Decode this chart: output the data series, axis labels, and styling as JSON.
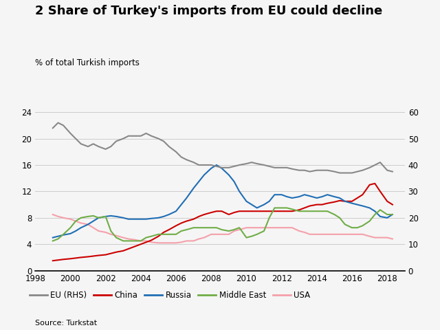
{
  "title": "2 Share of Turkey's imports from EU could decline",
  "ylabel_left": "% of total Turkish imports",
  "source": "Source: Turkstat",
  "xlim": [
    1998,
    2019
  ],
  "ylim_left": [
    0,
    30
  ],
  "ylim_right": [
    0,
    75
  ],
  "yticks_left": [
    0,
    4,
    8,
    12,
    16,
    20,
    24
  ],
  "yticks_right": [
    0,
    10,
    20,
    30,
    40,
    50,
    60
  ],
  "xticks": [
    1998,
    2000,
    2002,
    2004,
    2006,
    2008,
    2010,
    2012,
    2014,
    2016,
    2018
  ],
  "EU_RHS": {
    "label": "EU (RHS)",
    "color": "#888888",
    "x": [
      1999.0,
      1999.3,
      1999.6,
      2000.0,
      2000.3,
      2000.6,
      2001.0,
      2001.3,
      2001.6,
      2002.0,
      2002.3,
      2002.6,
      2003.0,
      2003.3,
      2003.6,
      2004.0,
      2004.3,
      2004.6,
      2005.0,
      2005.3,
      2005.6,
      2006.0,
      2006.3,
      2006.6,
      2007.0,
      2007.3,
      2007.6,
      2008.0,
      2008.3,
      2008.6,
      2009.0,
      2009.3,
      2009.6,
      2010.0,
      2010.3,
      2010.6,
      2011.0,
      2011.3,
      2011.6,
      2012.0,
      2012.3,
      2012.6,
      2013.0,
      2013.3,
      2013.6,
      2014.0,
      2014.3,
      2014.6,
      2015.0,
      2015.3,
      2015.6,
      2016.0,
      2016.3,
      2016.6,
      2017.0,
      2017.3,
      2017.6,
      2018.0,
      2018.3
    ],
    "y": [
      54,
      56,
      55,
      52,
      50,
      48,
      47,
      48,
      47,
      46,
      47,
      49,
      50,
      51,
      51,
      51,
      52,
      51,
      50,
      49,
      47,
      45,
      43,
      42,
      41,
      40,
      40,
      40,
      39.5,
      39,
      39,
      39.5,
      40,
      40.5,
      41,
      40.5,
      40,
      39.5,
      39,
      39,
      39,
      38.5,
      38,
      38,
      37.5,
      38,
      38,
      38,
      37.5,
      37,
      37,
      37,
      37.5,
      38,
      39,
      40,
      41,
      38,
      37.5
    ]
  },
  "China": {
    "label": "China",
    "color": "#cc0000",
    "x": [
      1999.0,
      1999.3,
      1999.6,
      2000.0,
      2000.3,
      2000.6,
      2001.0,
      2001.3,
      2001.6,
      2002.0,
      2002.3,
      2002.6,
      2003.0,
      2003.3,
      2003.6,
      2004.0,
      2004.3,
      2004.6,
      2005.0,
      2005.3,
      2005.6,
      2006.0,
      2006.3,
      2006.6,
      2007.0,
      2007.3,
      2007.6,
      2008.0,
      2008.3,
      2008.6,
      2009.0,
      2009.3,
      2009.6,
      2010.0,
      2010.3,
      2010.6,
      2011.0,
      2011.3,
      2011.6,
      2012.0,
      2012.3,
      2012.6,
      2013.0,
      2013.3,
      2013.6,
      2014.0,
      2014.3,
      2014.6,
      2015.0,
      2015.3,
      2015.6,
      2016.0,
      2016.3,
      2016.6,
      2017.0,
      2017.3,
      2017.6,
      2018.0,
      2018.3
    ],
    "y": [
      1.5,
      1.6,
      1.7,
      1.8,
      1.9,
      2.0,
      2.1,
      2.2,
      2.3,
      2.4,
      2.6,
      2.8,
      3.0,
      3.3,
      3.6,
      4.0,
      4.3,
      4.6,
      5.2,
      5.8,
      6.2,
      6.8,
      7.2,
      7.5,
      7.8,
      8.2,
      8.5,
      8.8,
      9.0,
      9.0,
      8.5,
      8.8,
      9.0,
      9.0,
      9.0,
      9.0,
      9.0,
      9.0,
      9.0,
      9.0,
      9.0,
      9.0,
      9.2,
      9.5,
      9.8,
      10.0,
      10.0,
      10.2,
      10.4,
      10.6,
      10.5,
      10.5,
      11.0,
      11.5,
      13.0,
      13.2,
      12.0,
      10.5,
      10.0
    ]
  },
  "Russia": {
    "label": "Russia",
    "color": "#1f6eb5",
    "x": [
      1999.0,
      1999.3,
      1999.6,
      2000.0,
      2000.3,
      2000.6,
      2001.0,
      2001.3,
      2001.6,
      2002.0,
      2002.3,
      2002.6,
      2003.0,
      2003.3,
      2003.6,
      2004.0,
      2004.3,
      2004.6,
      2005.0,
      2005.3,
      2005.6,
      2006.0,
      2006.3,
      2006.6,
      2007.0,
      2007.3,
      2007.6,
      2008.0,
      2008.3,
      2008.6,
      2009.0,
      2009.3,
      2009.6,
      2010.0,
      2010.3,
      2010.6,
      2011.0,
      2011.3,
      2011.6,
      2012.0,
      2012.3,
      2012.6,
      2013.0,
      2013.3,
      2013.6,
      2014.0,
      2014.3,
      2014.6,
      2015.0,
      2015.3,
      2015.6,
      2016.0,
      2016.3,
      2016.6,
      2017.0,
      2017.3,
      2017.6,
      2018.0,
      2018.3
    ],
    "y": [
      5.0,
      5.2,
      5.4,
      5.6,
      6.0,
      6.5,
      7.0,
      7.5,
      8.0,
      8.2,
      8.3,
      8.2,
      8.0,
      7.8,
      7.8,
      7.8,
      7.8,
      7.9,
      8.0,
      8.2,
      8.5,
      9.0,
      10.0,
      11.0,
      12.5,
      13.5,
      14.5,
      15.5,
      16.0,
      15.5,
      14.5,
      13.5,
      12.0,
      10.5,
      10.0,
      9.5,
      10.0,
      10.5,
      11.5,
      11.5,
      11.2,
      11.0,
      11.2,
      11.5,
      11.3,
      11.0,
      11.2,
      11.5,
      11.2,
      11.0,
      10.5,
      10.2,
      10.0,
      9.8,
      9.5,
      9.0,
      8.2,
      8.0,
      8.5
    ]
  },
  "MiddleEast": {
    "label": "Middle East",
    "color": "#70ad47",
    "x": [
      1999.0,
      1999.3,
      1999.6,
      2000.0,
      2000.3,
      2000.6,
      2001.0,
      2001.3,
      2001.6,
      2002.0,
      2002.3,
      2002.6,
      2003.0,
      2003.3,
      2003.6,
      2004.0,
      2004.3,
      2004.6,
      2005.0,
      2005.3,
      2005.6,
      2006.0,
      2006.3,
      2006.6,
      2007.0,
      2007.3,
      2007.6,
      2008.0,
      2008.3,
      2008.6,
      2009.0,
      2009.3,
      2009.6,
      2010.0,
      2010.3,
      2010.6,
      2011.0,
      2011.3,
      2011.6,
      2012.0,
      2012.3,
      2012.6,
      2013.0,
      2013.3,
      2013.6,
      2014.0,
      2014.3,
      2014.6,
      2015.0,
      2015.3,
      2015.6,
      2016.0,
      2016.3,
      2016.6,
      2017.0,
      2017.3,
      2017.6,
      2018.0,
      2018.3
    ],
    "y": [
      4.5,
      4.8,
      5.5,
      6.5,
      7.5,
      8.0,
      8.2,
      8.3,
      8.0,
      8.2,
      6.0,
      5.0,
      4.5,
      4.5,
      4.5,
      4.5,
      5.0,
      5.2,
      5.5,
      5.5,
      5.5,
      5.5,
      6.0,
      6.2,
      6.5,
      6.5,
      6.5,
      6.5,
      6.5,
      6.2,
      6.0,
      6.2,
      6.5,
      5.0,
      5.2,
      5.5,
      6.0,
      8.0,
      9.5,
      9.5,
      9.5,
      9.3,
      9.0,
      9.0,
      9.0,
      9.0,
      9.0,
      9.0,
      8.5,
      8.0,
      7.0,
      6.5,
      6.5,
      6.8,
      7.5,
      8.5,
      9.2,
      8.5,
      8.5
    ]
  },
  "USA": {
    "label": "USA",
    "color": "#f4a0aa",
    "x": [
      1999.0,
      1999.3,
      1999.6,
      2000.0,
      2000.3,
      2000.6,
      2001.0,
      2001.3,
      2001.6,
      2002.0,
      2002.3,
      2002.6,
      2003.0,
      2003.3,
      2003.6,
      2004.0,
      2004.3,
      2004.6,
      2005.0,
      2005.3,
      2005.6,
      2006.0,
      2006.3,
      2006.6,
      2007.0,
      2007.3,
      2007.6,
      2008.0,
      2008.3,
      2008.6,
      2009.0,
      2009.3,
      2009.6,
      2010.0,
      2010.3,
      2010.6,
      2011.0,
      2011.3,
      2011.6,
      2012.0,
      2012.3,
      2012.6,
      2013.0,
      2013.3,
      2013.6,
      2014.0,
      2014.3,
      2014.6,
      2015.0,
      2015.3,
      2015.6,
      2016.0,
      2016.3,
      2016.6,
      2017.0,
      2017.3,
      2017.6,
      2018.0,
      2018.3
    ],
    "y": [
      8.5,
      8.2,
      8.0,
      7.8,
      7.5,
      7.2,
      7.0,
      6.5,
      6.0,
      5.8,
      5.5,
      5.3,
      5.0,
      4.8,
      4.7,
      4.5,
      4.5,
      4.3,
      4.2,
      4.2,
      4.2,
      4.2,
      4.3,
      4.5,
      4.5,
      4.8,
      5.0,
      5.5,
      5.5,
      5.5,
      5.5,
      6.0,
      6.2,
      6.5,
      6.5,
      6.5,
      6.5,
      6.5,
      6.5,
      6.5,
      6.5,
      6.5,
      6.0,
      5.8,
      5.5,
      5.5,
      5.5,
      5.5,
      5.5,
      5.5,
      5.5,
      5.5,
      5.5,
      5.5,
      5.2,
      5.0,
      5.0,
      5.0,
      4.8
    ]
  },
  "title_fontsize": 13,
  "label_fontsize": 8.5,
  "tick_fontsize": 8.5,
  "legend_fontsize": 8.5,
  "source_fontsize": 8,
  "background_color": "#f5f5f5",
  "grid_color": "#cccccc"
}
